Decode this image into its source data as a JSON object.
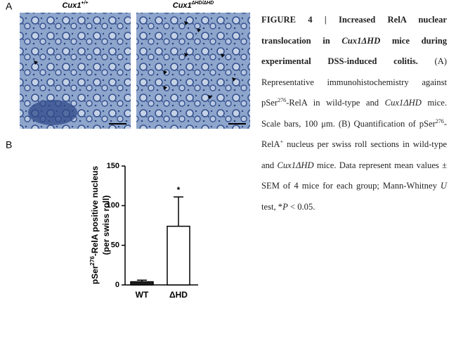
{
  "panel_a": {
    "label": "A",
    "images": [
      {
        "title": "Cux1",
        "title_sup": "+/+"
      },
      {
        "title": "Cux1",
        "title_sup": "ΔHD/ΔHD"
      }
    ]
  },
  "panel_b": {
    "label": "B",
    "chart_data": {
      "type": "bar",
      "y_label_parts": [
        "pSer",
        "276",
        "-RelA positive nucleus",
        "(per swiss roll)"
      ],
      "categories": [
        "WT",
        "ΔHD"
      ],
      "values": [
        4,
        74
      ],
      "errors": [
        2,
        37
      ],
      "colors": [
        "#222222",
        "#ffffff"
      ],
      "significance_labels": [
        null,
        "*"
      ],
      "ylim": [
        0,
        150
      ],
      "yticks": [
        0,
        50,
        100,
        150
      ]
    }
  },
  "caption": {
    "parts": [
      "FIGURE 4 | Increased RelA nuclear translocation in ",
      "Cux1ΔHD",
      " mice during experimental DSS-induced colitis.",
      " (A) Representative immunohistochemistry against pSer",
      "276",
      "-RelA in wild-type and ",
      "Cux1ΔHD",
      " mice. Scale bars, 100 μm. (B) Quantification of pSer",
      "276",
      "-RelA",
      "+",
      " nucleus per swiss roll sections in wild-type and ",
      "Cux1ΔHD",
      " mice. Data represent mean values ± SEM of 4 mice for each group; Mann-Whitney ",
      "U",
      " test, *",
      "P",
      " < 0.05."
    ]
  }
}
